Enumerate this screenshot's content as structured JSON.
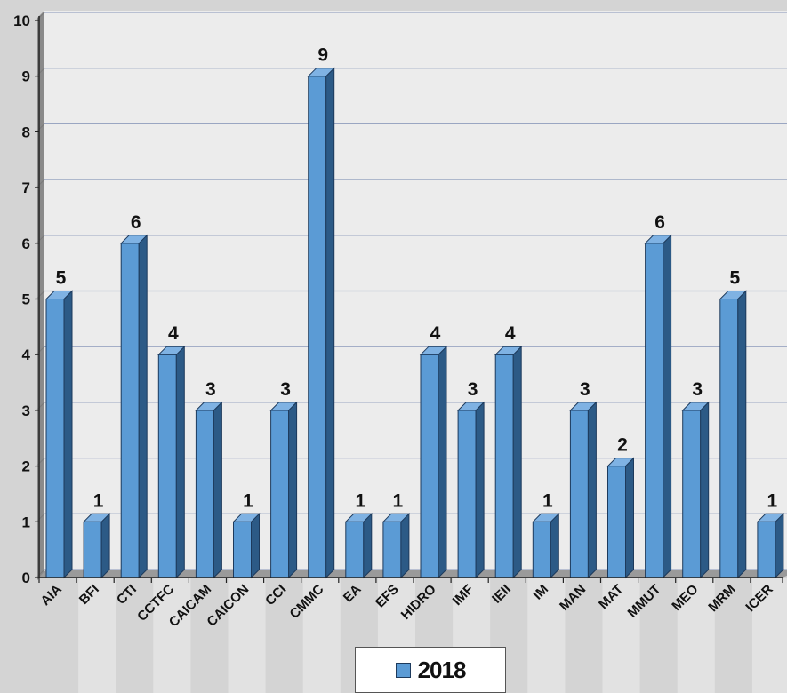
{
  "chart_data": {
    "type": "bar",
    "categories": [
      "AIA",
      "BFI",
      "CTI",
      "CCTFC",
      "CAICAM",
      "CAICON",
      "CCI",
      "CMMC",
      "EA",
      "EFS",
      "HIDRO",
      "IMF",
      "IEII",
      "IM",
      "MAN",
      "MAT",
      "MMUT",
      "MEO",
      "MRM",
      "ICER"
    ],
    "series": [
      {
        "name": "2018",
        "values": [
          5,
          1,
          6,
          4,
          3,
          1,
          3,
          9,
          1,
          1,
          4,
          3,
          4,
          1,
          3,
          2,
          6,
          3,
          5,
          1
        ]
      }
    ],
    "yticks": [
      "0",
      "1",
      "2",
      "3",
      "4",
      "5",
      "6",
      "7",
      "8",
      "9",
      "10"
    ],
    "ylim": [
      0,
      10
    ],
    "grid": true,
    "legend_position": "bottom",
    "colors": {
      "bar_front": "#5b9bd5",
      "bar_side": "#2c5a86",
      "bar_top": "#7fb2e3",
      "outline": "#1d3a5c"
    }
  }
}
